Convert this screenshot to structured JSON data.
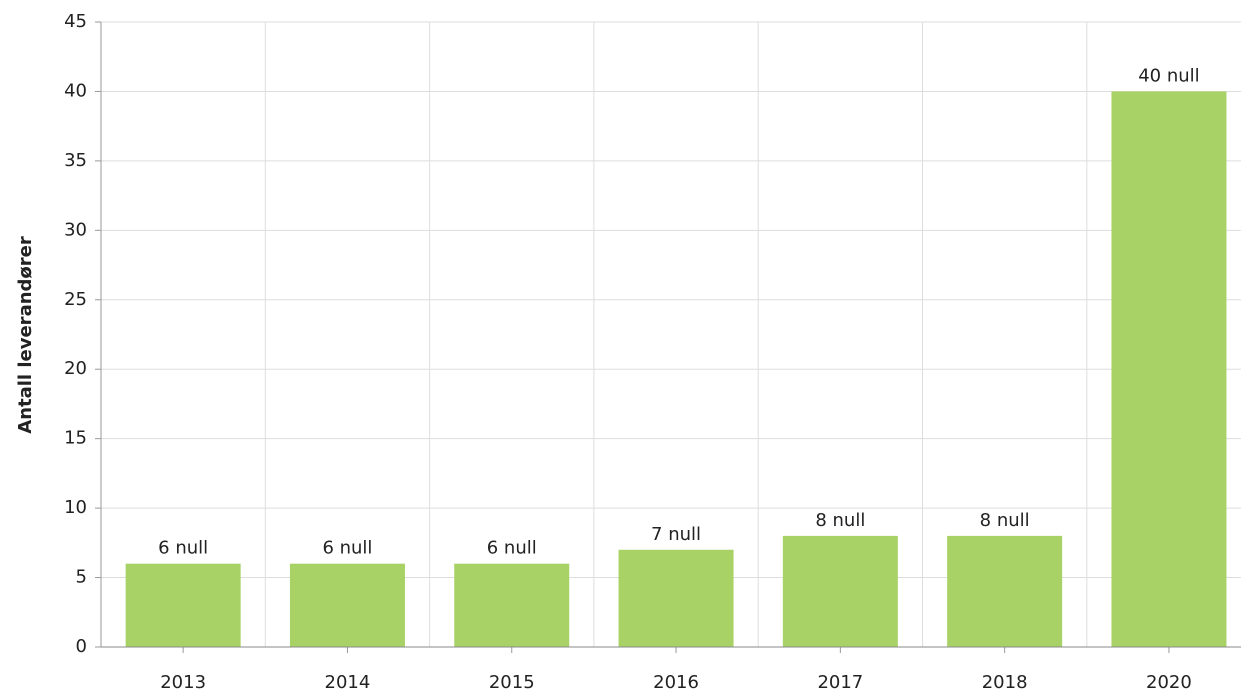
{
  "chart_data": {
    "type": "bar",
    "y_label": "Antall leverandører",
    "categories": [
      "2013",
      "2014",
      "2015",
      "2016",
      "2017",
      "2018",
      "2020"
    ],
    "values": [
      6,
      6,
      6,
      7,
      8,
      8,
      40
    ],
    "value_labels": [
      "6 null",
      "6 null",
      "6 null",
      "7 null",
      "8 null",
      "8 null",
      "40 null"
    ],
    "color": "#a9d266",
    "ylim": [
      0,
      45
    ],
    "yticks": [
      0,
      5,
      10,
      15,
      20,
      25,
      30,
      35,
      40,
      45
    ],
    "grid": true
  }
}
